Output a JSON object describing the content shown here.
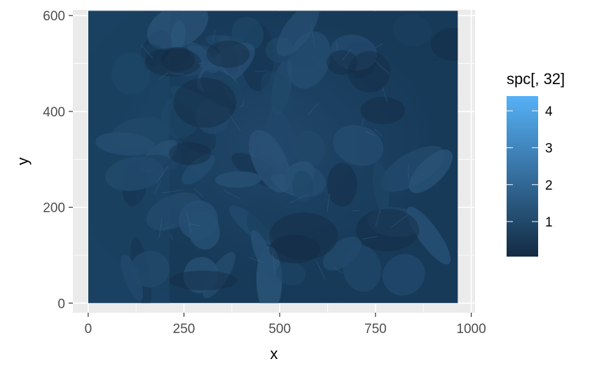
{
  "chart_data": {
    "type": "heatmap",
    "title": "",
    "xlabel": "x",
    "ylabel": "y",
    "xlim": [
      -40,
      1010
    ],
    "ylim": [
      -20,
      612
    ],
    "x_ticks": [
      0,
      250,
      500,
      750,
      1000
    ],
    "y_ticks": [
      0,
      200,
      400,
      600
    ],
    "image_extent": {
      "x": [
        0,
        965
      ],
      "y": [
        0,
        610
      ]
    },
    "legend": {
      "title": "spc[, 32]",
      "placement": "right",
      "range": [
        0.05,
        4.4
      ],
      "ticks": [
        1,
        2,
        3,
        4
      ],
      "low_color": "#132B43",
      "high_color": "#56B1F7"
    },
    "panel_background": "#EBEBEB",
    "grid": true,
    "grid_color": "#FFFFFF",
    "content": "aerial view of potato plant leaves rendered as a continuous colour-scaled raster"
  }
}
